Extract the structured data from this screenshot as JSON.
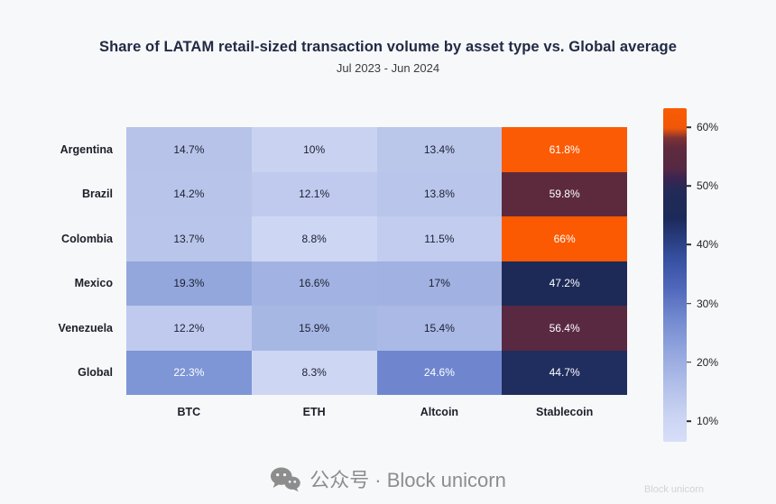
{
  "title": "Share of LATAM retail-sized transaction volume by asset type vs. Global average",
  "subtitle": "Jul 2023 - Jun 2024",
  "watermark": {
    "text": "公众号 · Block unicorn",
    "ghost_text": "Block unicorn",
    "icon": "wechat-icon",
    "color": "#8d8d8d"
  },
  "chart_data": {
    "type": "heatmap",
    "title": "Share of LATAM retail-sized transaction volume by asset type vs. Global average",
    "subtitle": "Jul 2023 - Jun 2024",
    "columns": [
      "BTC",
      "ETH",
      "Altcoin",
      "Stablecoin"
    ],
    "rows": [
      "Argentina",
      "Brazil",
      "Colombia",
      "Mexico",
      "Venezuela",
      "Global"
    ],
    "values": [
      [
        14.7,
        10,
        13.4,
        61.8
      ],
      [
        14.2,
        12.1,
        13.8,
        59.8
      ],
      [
        13.7,
        8.8,
        11.5,
        66
      ],
      [
        19.3,
        16.6,
        17,
        47.2
      ],
      [
        12.2,
        15.9,
        15.4,
        56.4
      ],
      [
        22.3,
        8.3,
        24.6,
        44.7
      ]
    ],
    "labels": [
      [
        "14.7%",
        "10%",
        "13.4%",
        "61.8%"
      ],
      [
        "14.2%",
        "12.1%",
        "13.8%",
        "59.8%"
      ],
      [
        "13.7%",
        "8.8%",
        "11.5%",
        "66%"
      ],
      [
        "19.3%",
        "16.6%",
        "17%",
        "47.2%"
      ],
      [
        "12.2%",
        "15.9%",
        "15.4%",
        "56.4%"
      ],
      [
        "22.3%",
        "8.3%",
        "24.6%",
        "44.7%"
      ]
    ],
    "cell_colors": [
      [
        "#b7c3e9",
        "#c9d2f1",
        "#bac6ea",
        "#fb5b05"
      ],
      [
        "#b8c4ea",
        "#bfcaee",
        "#b9c5ea",
        "#5d2a3d"
      ],
      [
        "#b9c5ea",
        "#cdd6f3",
        "#c1ccef",
        "#fb5a02"
      ],
      [
        "#93a7dc",
        "#a2b3e3",
        "#a0b1e2",
        "#1d2a57"
      ],
      [
        "#bfcaee",
        "#a7b7e4",
        "#aab9e5",
        "#592942"
      ],
      [
        "#7e95d6",
        "#cdd6f3",
        "#6f86cf",
        "#202e5f"
      ]
    ],
    "text_colors": [
      [
        "#1c2030",
        "#1c2030",
        "#1c2030",
        "#ffffff"
      ],
      [
        "#1c2030",
        "#1c2030",
        "#1c2030",
        "#ffffff"
      ],
      [
        "#1c2030",
        "#1c2030",
        "#1c2030",
        "#ffffff"
      ],
      [
        "#1c2030",
        "#1c2030",
        "#1c2030",
        "#ffffff"
      ],
      [
        "#1c2030",
        "#1c2030",
        "#1c2030",
        "#ffffff"
      ],
      [
        "#ffffff",
        "#1c2030",
        "#ffffff",
        "#ffffff"
      ]
    ],
    "colorbar": {
      "ticks": [
        "60%",
        "50%",
        "40%",
        "30%",
        "20%",
        "10%"
      ],
      "range_percent": [
        6,
        64
      ],
      "legend_position": "right"
    },
    "grid": false,
    "xlabel": "",
    "ylabel": ""
  }
}
